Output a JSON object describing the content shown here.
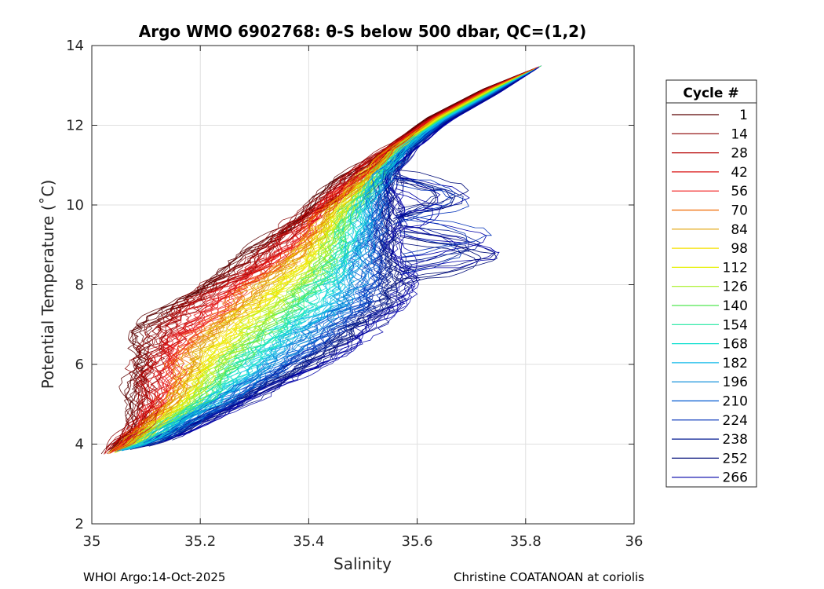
{
  "chart_data": {
    "type": "line",
    "title": "Argo WMO 6902768: θ-S below 500 dbar,  QC=(1,2)",
    "xlabel": "Salinity",
    "ylabel": "Potential Temperature (˚C)",
    "xlim": [
      35,
      36
    ],
    "ylim": [
      2,
      14
    ],
    "xticks": [
      35,
      35.2,
      35.4,
      35.6,
      35.8,
      36
    ],
    "xtick_labels": [
      "35",
      "35.2",
      "35.4",
      "35.6",
      "35.8",
      "36"
    ],
    "yticks": [
      2,
      4,
      6,
      8,
      10,
      12,
      14
    ],
    "ytick_labels": [
      "2",
      "4",
      "6",
      "8",
      "10",
      "12",
      "14"
    ],
    "grid": true,
    "legend": {
      "title": "Cycle #",
      "placement": "outside-right",
      "entries": [
        {
          "label": "1",
          "color": "#5a0000"
        },
        {
          "label": "14",
          "color": "#8a0000"
        },
        {
          "label": "28",
          "color": "#b40000"
        },
        {
          "label": "42",
          "color": "#d81010"
        },
        {
          "label": "56",
          "color": "#f01e1e"
        },
        {
          "label": "70",
          "color": "#f06a00"
        },
        {
          "label": "84",
          "color": "#e0a000"
        },
        {
          "label": "98",
          "color": "#f5e000"
        },
        {
          "label": "112",
          "color": "#e6f000"
        },
        {
          "label": "126",
          "color": "#a6f020"
        },
        {
          "label": "140",
          "color": "#50e850"
        },
        {
          "label": "154",
          "color": "#20e8a0"
        },
        {
          "label": "168",
          "color": "#10e0d0"
        },
        {
          "label": "182",
          "color": "#10b8e8"
        },
        {
          "label": "196",
          "color": "#0088d8"
        },
        {
          "label": "210",
          "color": "#0058d0"
        },
        {
          "label": "224",
          "color": "#0030b8"
        },
        {
          "label": "238",
          "color": "#001890"
        },
        {
          "label": "252",
          "color": "#000c78"
        },
        {
          "label": "266",
          "color": "#0000a8"
        }
      ]
    },
    "envelope": {
      "cold_end": [
        35.03,
        3.7
      ],
      "warm_end": [
        35.83,
        13.5
      ],
      "fresh_edge": [
        [
          35.02,
          3.7
        ],
        [
          35.06,
          4.3
        ],
        [
          35.08,
          5.0
        ],
        [
          35.07,
          5.8
        ],
        [
          35.07,
          6.4
        ],
        [
          35.09,
          6.9
        ],
        [
          35.13,
          7.4
        ],
        [
          35.18,
          7.9
        ],
        [
          35.26,
          8.5
        ],
        [
          35.32,
          9.1
        ],
        [
          35.38,
          9.8
        ],
        [
          35.46,
          10.6
        ],
        [
          35.54,
          11.4
        ],
        [
          35.62,
          12.2
        ],
        [
          35.72,
          12.9
        ],
        [
          35.83,
          13.5
        ]
      ],
      "salty_edge": [
        [
          35.05,
          3.8
        ],
        [
          35.12,
          4.0
        ],
        [
          35.2,
          4.5
        ],
        [
          35.3,
          5.1
        ],
        [
          35.4,
          5.8
        ],
        [
          35.5,
          6.6
        ],
        [
          35.58,
          7.5
        ],
        [
          35.59,
          8.2
        ],
        [
          35.57,
          9.0
        ],
        [
          35.56,
          10.0
        ],
        [
          35.56,
          10.8
        ],
        [
          35.59,
          11.4
        ],
        [
          35.66,
          12.1
        ],
        [
          35.75,
          12.8
        ],
        [
          35.83,
          13.5
        ]
      ],
      "branch_offset": 0.18,
      "salty_excursions": [
        {
          "s": 35.76,
          "t": 8.95
        },
        {
          "s": 35.7,
          "t": 10.1
        }
      ]
    }
  },
  "footer": {
    "left": "WHOI Argo:14-Oct-2025",
    "right": "Christine COATANOAN at coriolis"
  }
}
